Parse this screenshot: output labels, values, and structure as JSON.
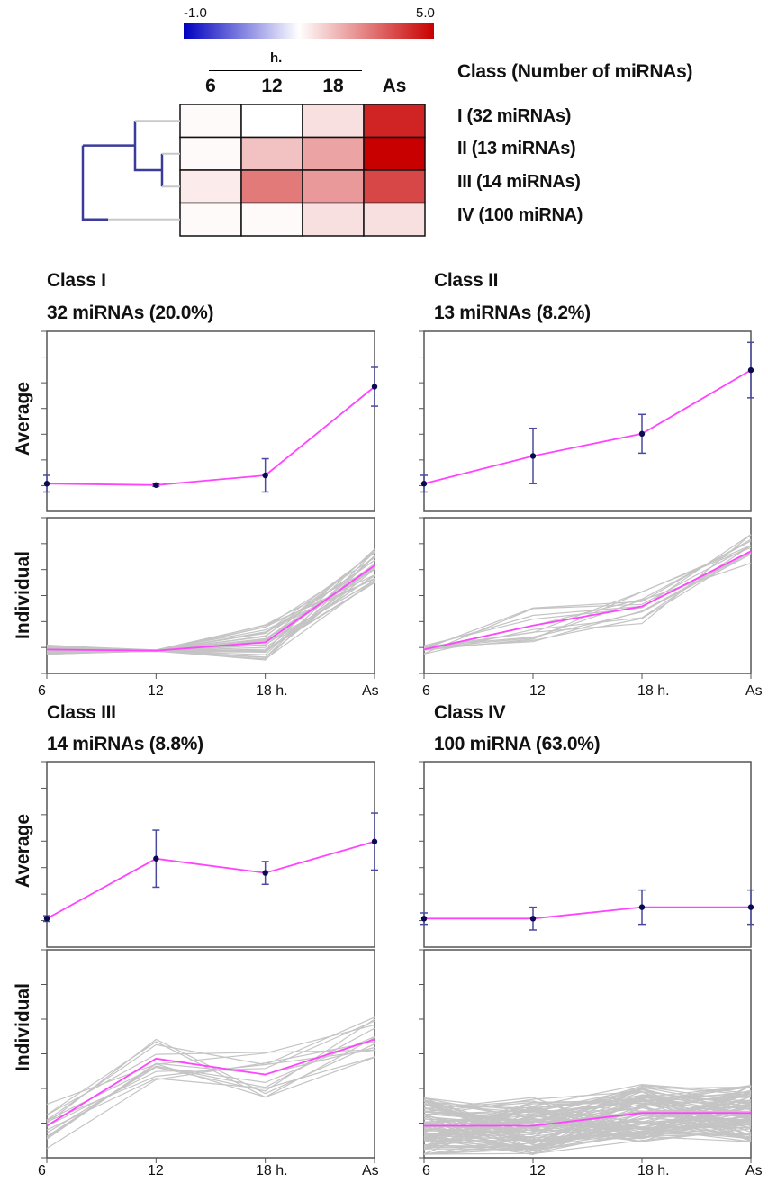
{
  "color_scale": {
    "min_label": "-1.0",
    "max_label": "5.0",
    "min": -1.0,
    "max": 5.0,
    "low_color": "#0000c0",
    "mid_color": "#ffffff",
    "high_color": "#c80000"
  },
  "heatmap": {
    "group_label": "h.",
    "columns": [
      "6",
      "12",
      "18",
      "As"
    ],
    "class_header": "Class (Number of miRNAs)",
    "rows": [
      {
        "label": "I (32 miRNAs)",
        "values": [
          0.1,
          0.0,
          0.6,
          4.3
        ]
      },
      {
        "label": "II (13 miRNAs)",
        "values": [
          0.1,
          1.2,
          1.8,
          5.0
        ]
      },
      {
        "label": "III (14 miRNAs)",
        "values": [
          0.4,
          2.6,
          2.0,
          3.6
        ]
      },
      {
        "label": "IV (100 miRNA)",
        "values": [
          0.1,
          0.1,
          0.6,
          0.6
        ]
      }
    ]
  },
  "panels": {
    "y_label_top": "Average",
    "y_label_bottom": "Individual",
    "x_ticks": [
      "6",
      "12",
      "18 h.",
      "As"
    ]
  },
  "chart_data": [
    {
      "type": "line",
      "title": "Class I",
      "subtitle": "32 miRNAs (20.0%)",
      "categories": [
        "6",
        "12",
        "18 h.",
        "As"
      ],
      "average": [
        0.0,
        -0.05,
        0.3,
        3.5
      ],
      "error": [
        0.3,
        0.05,
        0.6,
        0.7
      ],
      "individual_count": 32,
      "series_color": "#ff44ff"
    },
    {
      "type": "line",
      "title": "Class II",
      "subtitle": "13 miRNAs (8.2%)",
      "categories": [
        "6",
        "12",
        "18 h.",
        "As"
      ],
      "average": [
        0.0,
        1.0,
        1.8,
        4.1
      ],
      "error": [
        0.3,
        1.0,
        0.7,
        1.0
      ],
      "individual_count": 13,
      "series_color": "#ff44ff"
    },
    {
      "type": "line",
      "title": "Class III",
      "subtitle": "14 miRNAs (8.8%)",
      "categories": [
        "6",
        "12",
        "18 h.",
        "As"
      ],
      "average": [
        0.0,
        2.1,
        1.6,
        2.7
      ],
      "error": [
        0.1,
        1.0,
        0.4,
        1.0
      ],
      "individual_count": 14,
      "series_color": "#ff44ff"
    },
    {
      "type": "line",
      "title": "Class IV",
      "subtitle": "100 miRNA (63.0%)",
      "categories": [
        "6",
        "12",
        "18 h.",
        "As"
      ],
      "average": [
        0.0,
        0.0,
        0.4,
        0.4
      ],
      "error": [
        0.2,
        0.4,
        0.6,
        0.6
      ],
      "individual_count": 100,
      "series_color": "#ff44ff"
    }
  ]
}
